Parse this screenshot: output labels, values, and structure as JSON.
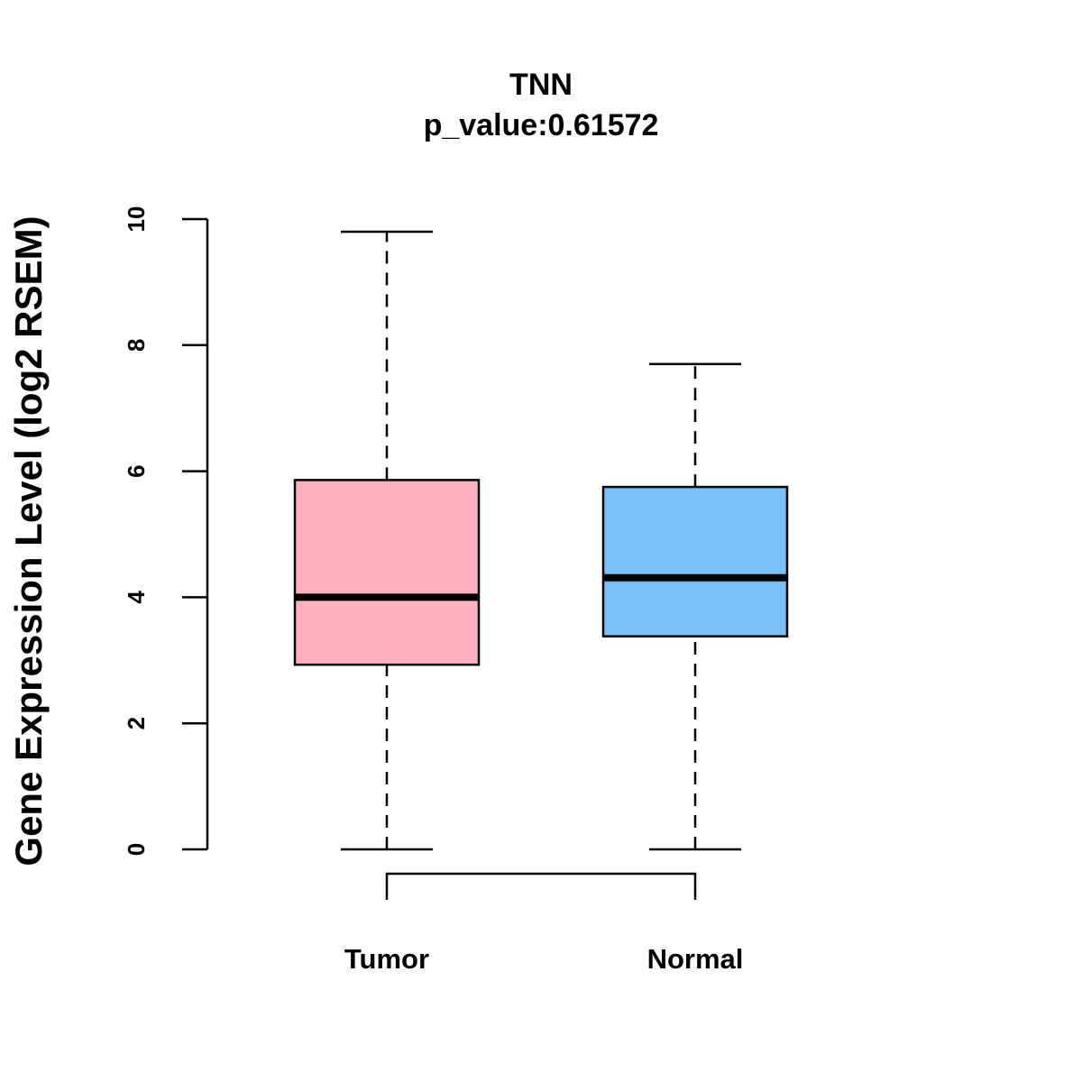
{
  "chart_data": {
    "type": "box",
    "title": "TNN",
    "subtitle": "p_value:0.61572",
    "xlabel": "",
    "ylabel": "Gene Expression Level (log2 RSEM)",
    "ylim": [
      0,
      10
    ],
    "yticks": [
      "0",
      "2",
      "4",
      "6",
      "8",
      "10"
    ],
    "grid": false,
    "categories": [
      "Tumor",
      "Normal"
    ],
    "boxes": [
      {
        "name": "Tumor",
        "min": 0,
        "q1": 2.93,
        "median": 4.0,
        "q3": 5.86,
        "max": 9.8,
        "color": "#FDB0C0"
      },
      {
        "name": "Normal",
        "min": 0,
        "q1": 3.38,
        "median": 4.31,
        "q3": 5.75,
        "max": 7.7,
        "color": "#78C1F7"
      }
    ],
    "comparison_bracket": [
      "Tumor",
      "Normal"
    ]
  }
}
